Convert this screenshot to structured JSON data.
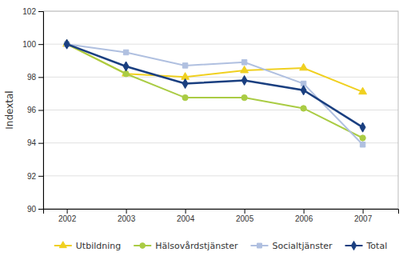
{
  "chart_data": {
    "type": "line",
    "y_label": "Indextal",
    "x": [
      2002,
      2003,
      2004,
      2005,
      2006,
      2007
    ],
    "series": [
      {
        "name": "Utbildning",
        "color": "#f0d020",
        "marker": "triangle",
        "values": [
          100.0,
          98.2,
          98.0,
          98.4,
          98.55,
          97.1
        ]
      },
      {
        "name": "Hälsovårdstjänster",
        "color": "#aacc44",
        "marker": "circle",
        "values": [
          100.0,
          98.2,
          96.75,
          96.75,
          96.1,
          94.3
        ]
      },
      {
        "name": "Socialtjänster",
        "color": "#b0c0e0",
        "marker": "square",
        "values": [
          100.0,
          99.5,
          98.7,
          98.9,
          97.6,
          93.9
        ]
      },
      {
        "name": "Total",
        "color": "#1a3f80",
        "marker": "diamond",
        "values": [
          100.0,
          98.65,
          97.6,
          97.8,
          97.2,
          94.95
        ]
      }
    ],
    "xlim": [
      2001.6,
      2007.6
    ],
    "xticks": [
      2002,
      2003,
      2004,
      2005,
      2006,
      2007
    ],
    "ylim": [
      90,
      102
    ],
    "yticks": [
      90,
      92,
      94,
      96,
      98,
      100,
      102
    ],
    "grid": true,
    "legend": "bottom"
  }
}
